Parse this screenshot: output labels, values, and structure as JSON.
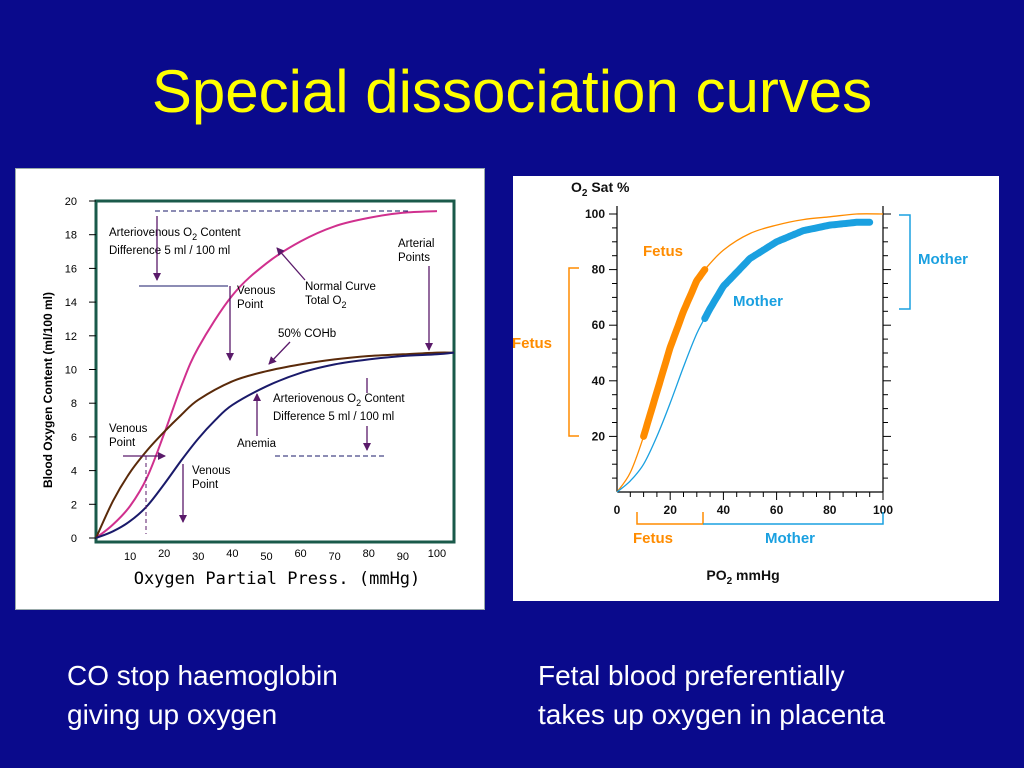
{
  "slide": {
    "title": "Special dissociation curves",
    "captions": {
      "left": [
        "CO stop haemoglobin",
        "giving up oxygen"
      ],
      "right": [
        "Fetal blood preferentially",
        "takes up oxygen in placenta"
      ]
    },
    "colors": {
      "background": "#0a0a8c",
      "title": "#ffff00",
      "caption": "#ffffff"
    }
  },
  "chart_data": [
    {
      "type": "line",
      "xlabel": "Oxygen Partial Press. (mmHg)",
      "ylabel": "Blood Oxygen Content (ml/100 ml)",
      "xlim": [
        0,
        105
      ],
      "ylim": [
        0,
        20
      ],
      "x_ticks": [
        10,
        20,
        30,
        40,
        50,
        60,
        70,
        80,
        90,
        100
      ],
      "y_ticks": [
        0,
        2,
        4,
        6,
        8,
        10,
        12,
        14,
        16,
        18,
        20
      ],
      "colors": {
        "frame": "#1a5a4a",
        "normal": "#d0308e",
        "coHb": "#5a2a0a",
        "anemia": "#1a1a6a",
        "arrow": "#5a1a6a"
      },
      "series": [
        {
          "key": "normal",
          "x": [
            0,
            5,
            10,
            15,
            20,
            25,
            30,
            40,
            50,
            60,
            70,
            80,
            90,
            100
          ],
          "y": [
            0,
            0.8,
            1.9,
            3.6,
            6.2,
            9.0,
            11.3,
            14.4,
            16.3,
            17.6,
            18.5,
            19.0,
            19.3,
            19.4
          ]
        },
        {
          "key": "coHb",
          "x": [
            0,
            5,
            10,
            15,
            20,
            25,
            30,
            40,
            50,
            60,
            70,
            80,
            90,
            100,
            105
          ],
          "y": [
            0,
            2.2,
            3.9,
            5.2,
            6.3,
            7.3,
            8.2,
            9.3,
            9.9,
            10.3,
            10.6,
            10.8,
            10.9,
            11.0,
            11.0
          ]
        },
        {
          "key": "anemia",
          "x": [
            0,
            5,
            10,
            15,
            20,
            25,
            30,
            35,
            40,
            50,
            60,
            70,
            80,
            90,
            100,
            105
          ],
          "y": [
            0,
            0.4,
            1.0,
            1.9,
            3.2,
            4.6,
            5.9,
            7.0,
            7.9,
            9.0,
            9.8,
            10.3,
            10.6,
            10.8,
            10.9,
            11.0
          ]
        }
      ],
      "annotations": {
        "av_top_1": "Arteriovenous O",
        "av_top_sub": "2",
        "av_top_2": " Content",
        "av_top_3": "Difference  5 ml / 100 ml",
        "venous_point_1": "Venous",
        "venous_point_2": "Point",
        "normal_curve_1": "Normal Curve",
        "normal_curve_2": "Total O",
        "normal_curve_sub": "2",
        "arterial_1": "Arterial",
        "arterial_2": "Points",
        "cohb": "50% COHb",
        "av_bot_1": "Arteriovenous O",
        "av_bot_sub": "2",
        "av_bot_2": " Content",
        "av_bot_3": "Difference  5 ml / 100 ml",
        "anemia": "Anemia",
        "venous_left_1": "Venous",
        "venous_left_2": "Point",
        "venous_low_1": "Venous",
        "venous_low_2": "Point"
      }
    },
    {
      "type": "line",
      "title": "O",
      "title_sub": "2",
      "title_rest": " Sat %",
      "xlabel": "PO",
      "xlabel_sub": "2",
      "xlabel_rest": " mmHg",
      "xlim": [
        0,
        100
      ],
      "ylim": [
        0,
        100
      ],
      "x_ticks": [
        0,
        20,
        40,
        60,
        80,
        100
      ],
      "y_ticks": [
        20,
        40,
        60,
        80,
        100
      ],
      "colors": {
        "fetus": "#ff8c00",
        "mother": "#1aa0e0"
      },
      "series": [
        {
          "name": "Fetus",
          "x": [
            0,
            5,
            10,
            15,
            20,
            25,
            30,
            33,
            40,
            50,
            60,
            70,
            80,
            90,
            100
          ],
          "y": [
            0,
            7,
            20,
            36,
            52,
            65,
            76,
            80,
            87,
            93,
            96,
            98,
            99,
            100,
            100
          ],
          "highlight_x": [
            10,
            33
          ]
        },
        {
          "name": "Mother",
          "x": [
            0,
            5,
            10,
            15,
            20,
            25,
            30,
            35,
            40,
            50,
            60,
            70,
            80,
            90,
            95
          ],
          "y": [
            0,
            4,
            10,
            20,
            32,
            45,
            57,
            66,
            74,
            84,
            90,
            94,
            96,
            97,
            97
          ],
          "highlight_x": [
            33,
            95
          ]
        }
      ],
      "labels": {
        "fetus_curve": "Fetus",
        "mother_curve": "Mother",
        "fetus_y": "Fetus",
        "mother_y": "Mother",
        "fetus_x": "Fetus",
        "mother_x": "Mother"
      }
    }
  ]
}
